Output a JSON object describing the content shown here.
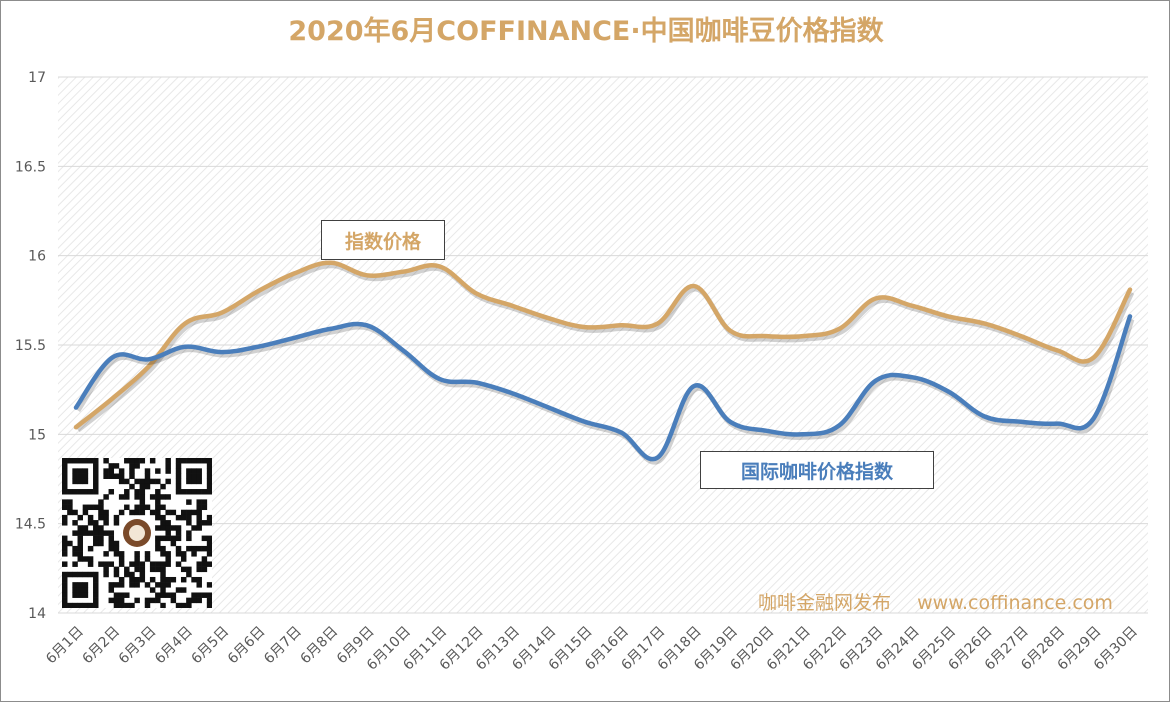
{
  "colors": {
    "index_price": "#d4a667",
    "intl_index": "#4a7ebb",
    "title": "#d4a667",
    "axis_text": "#595959",
    "grid": "#d9d9d9"
  },
  "labels": {
    "index_price": "指数价格",
    "intl_index": "国际咖啡价格指数"
  },
  "watermark": {
    "publisher": "咖啡金融网发布",
    "site": "www.coffinance.com"
  },
  "qr_icon": "qr-code-icon",
  "chart_data": {
    "type": "line",
    "title": "2020年6月COFFINANCE·中国咖啡豆价格指数",
    "categories": [
      "6月1日",
      "6月2日",
      "6月3日",
      "6月4日",
      "6月5日",
      "6月6日",
      "6月7日",
      "6月8日",
      "6月9日",
      "6月10日",
      "6月11日",
      "6月12日",
      "6月13日",
      "6月14日",
      "6月15日",
      "6月16日",
      "6月17日",
      "6月18日",
      "6月19日",
      "6月20日",
      "6月21日",
      "6月22日",
      "6月23日",
      "6月24日",
      "6月25日",
      "6月26日",
      "6月27日",
      "6月28日",
      "6月29日",
      "6月30日"
    ],
    "ylim": [
      14,
      17
    ],
    "yticks": [
      "14",
      "14.5",
      "15",
      "15.5",
      "16",
      "16.5",
      "17"
    ],
    "series": [
      {
        "name": "指数价格",
        "values": [
          15.04,
          15.2,
          15.38,
          15.62,
          15.68,
          15.8,
          15.9,
          15.96,
          15.89,
          15.91,
          15.94,
          15.79,
          15.72,
          15.65,
          15.6,
          15.61,
          15.62,
          15.83,
          15.58,
          15.55,
          15.55,
          15.59,
          15.76,
          15.72,
          15.66,
          15.62,
          15.55,
          15.47,
          15.43,
          15.81
        ]
      },
      {
        "name": "国际咖啡价格指数",
        "values": [
          15.15,
          15.43,
          15.42,
          15.49,
          15.46,
          15.49,
          15.54,
          15.59,
          15.61,
          15.47,
          15.31,
          15.29,
          15.23,
          15.15,
          15.07,
          15.01,
          14.87,
          15.27,
          15.07,
          15.02,
          15.0,
          15.05,
          15.3,
          15.32,
          15.24,
          15.1,
          15.07,
          15.06,
          15.09,
          15.66
        ]
      }
    ]
  }
}
